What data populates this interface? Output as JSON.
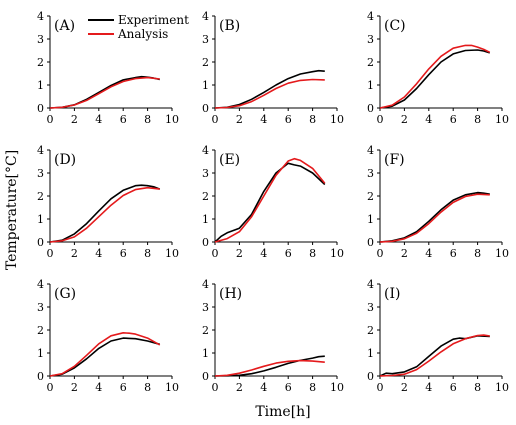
{
  "figure": {
    "xlabel": "Time[h]",
    "ylabel": "Temperature[°C]",
    "legend": {
      "placement": "inside panel A, top-right"
    }
  },
  "colors": {
    "Experiment": "#000000",
    "Analysis": "#e41a1c"
  },
  "chart_data": [
    {
      "type": "line",
      "label": "(A)",
      "xlim": [
        0,
        10
      ],
      "ylim": [
        0,
        4
      ],
      "grid": false,
      "xticks": [
        "0",
        "2",
        "4",
        "6",
        "8",
        "10"
      ],
      "yticks": [
        "0",
        "1",
        "2",
        "3",
        "4"
      ],
      "legend_entries": [
        "Experiment",
        "Analysis"
      ],
      "series": [
        {
          "name": "Experiment",
          "x": [
            0,
            1,
            2,
            3,
            4,
            5,
            6,
            7,
            7.5,
            8,
            8.5,
            9
          ],
          "y": [
            0,
            0.03,
            0.14,
            0.38,
            0.68,
            0.98,
            1.22,
            1.32,
            1.36,
            1.34,
            1.3,
            1.24
          ]
        },
        {
          "name": "Analysis",
          "x": [
            0,
            1,
            2,
            3,
            4,
            5,
            6,
            7,
            8,
            9
          ],
          "y": [
            0,
            0.03,
            0.13,
            0.33,
            0.62,
            0.92,
            1.15,
            1.28,
            1.32,
            1.26
          ]
        }
      ]
    },
    {
      "type": "line",
      "label": "(B)",
      "xlim": [
        0,
        10
      ],
      "ylim": [
        0,
        4
      ],
      "grid": false,
      "xticks": [
        "0",
        "2",
        "4",
        "6",
        "8",
        "10"
      ],
      "yticks": [
        "0",
        "1",
        "2",
        "3",
        "4"
      ],
      "series": [
        {
          "name": "Experiment",
          "x": [
            0,
            1,
            2,
            3,
            4,
            5,
            6,
            7,
            8,
            8.5,
            9
          ],
          "y": [
            0,
            0.03,
            0.15,
            0.38,
            0.68,
            1.0,
            1.28,
            1.48,
            1.58,
            1.62,
            1.6
          ]
        },
        {
          "name": "Analysis",
          "x": [
            0,
            1,
            2,
            3,
            4,
            5,
            6,
            7,
            8,
            9
          ],
          "y": [
            0,
            0.02,
            0.1,
            0.28,
            0.55,
            0.85,
            1.08,
            1.2,
            1.24,
            1.22
          ]
        }
      ]
    },
    {
      "type": "line",
      "label": "(C)",
      "xlim": [
        0,
        10
      ],
      "ylim": [
        0,
        4
      ],
      "grid": false,
      "xticks": [
        "0",
        "2",
        "4",
        "6",
        "8",
        "10"
      ],
      "yticks": [
        "0",
        "1",
        "2",
        "3",
        "4"
      ],
      "series": [
        {
          "name": "Experiment",
          "x": [
            0,
            1,
            2,
            3,
            4,
            5,
            6,
            7,
            8,
            8.5,
            9
          ],
          "y": [
            0,
            0.08,
            0.35,
            0.85,
            1.45,
            2.0,
            2.35,
            2.5,
            2.52,
            2.48,
            2.4
          ]
        },
        {
          "name": "Analysis",
          "x": [
            0,
            1,
            2,
            3,
            4,
            5,
            6,
            7,
            7.5,
            8,
            8.5,
            9
          ],
          "y": [
            0,
            0.12,
            0.48,
            1.05,
            1.7,
            2.25,
            2.6,
            2.72,
            2.72,
            2.65,
            2.55,
            2.42
          ]
        }
      ]
    },
    {
      "type": "line",
      "label": "(D)",
      "xlim": [
        0,
        10
      ],
      "ylim": [
        0,
        4
      ],
      "grid": false,
      "xticks": [
        "0",
        "2",
        "4",
        "6",
        "8",
        "10"
      ],
      "yticks": [
        "0",
        "1",
        "2",
        "3",
        "4"
      ],
      "series": [
        {
          "name": "Experiment",
          "x": [
            0,
            1,
            2,
            3,
            4,
            5,
            6,
            7,
            7.5,
            8,
            8.5,
            9
          ],
          "y": [
            0,
            0.08,
            0.35,
            0.8,
            1.35,
            1.88,
            2.25,
            2.45,
            2.47,
            2.45,
            2.4,
            2.3
          ]
        },
        {
          "name": "Analysis",
          "x": [
            0,
            1,
            2,
            3,
            4,
            5,
            6,
            7,
            8,
            9
          ],
          "y": [
            0,
            0.05,
            0.22,
            0.6,
            1.1,
            1.6,
            2.02,
            2.28,
            2.36,
            2.3
          ]
        }
      ]
    },
    {
      "type": "line",
      "label": "(E)",
      "xlim": [
        0,
        10
      ],
      "ylim": [
        0,
        4
      ],
      "grid": false,
      "xticks": [
        "0",
        "2",
        "4",
        "6",
        "8",
        "10"
      ],
      "yticks": [
        "0",
        "1",
        "2",
        "3",
        "4"
      ],
      "series": [
        {
          "name": "Experiment",
          "x": [
            0,
            0.5,
            1,
            2,
            3,
            4,
            5,
            6,
            6.5,
            7,
            8,
            9
          ],
          "y": [
            0,
            0.25,
            0.4,
            0.6,
            1.2,
            2.2,
            3.0,
            3.42,
            3.35,
            3.3,
            3.0,
            2.5
          ]
        },
        {
          "name": "Analysis",
          "x": [
            0,
            1,
            2,
            3,
            4,
            5,
            6,
            6.5,
            7,
            8,
            9
          ],
          "y": [
            0,
            0.15,
            0.45,
            1.1,
            2.0,
            2.9,
            3.52,
            3.62,
            3.55,
            3.2,
            2.55
          ]
        }
      ]
    },
    {
      "type": "line",
      "label": "(F)",
      "xlim": [
        0,
        10
      ],
      "ylim": [
        0,
        4
      ],
      "grid": false,
      "xticks": [
        "0",
        "2",
        "4",
        "6",
        "8",
        "10"
      ],
      "yticks": [
        "0",
        "1",
        "2",
        "3",
        "4"
      ],
      "series": [
        {
          "name": "Experiment",
          "x": [
            0,
            1,
            2,
            3,
            4,
            5,
            6,
            7,
            8,
            8.5,
            9
          ],
          "y": [
            0,
            0.05,
            0.18,
            0.45,
            0.9,
            1.4,
            1.82,
            2.05,
            2.15,
            2.12,
            2.08
          ]
        },
        {
          "name": "Analysis",
          "x": [
            0,
            1,
            2,
            3,
            4,
            5,
            6,
            7,
            8,
            9
          ],
          "y": [
            0,
            0.03,
            0.14,
            0.38,
            0.8,
            1.3,
            1.72,
            1.98,
            2.08,
            2.05
          ]
        }
      ]
    },
    {
      "type": "line",
      "label": "(G)",
      "xlim": [
        0,
        10
      ],
      "ylim": [
        0,
        4
      ],
      "grid": false,
      "xticks": [
        "0",
        "2",
        "4",
        "6",
        "8",
        "10"
      ],
      "yticks": [
        "0",
        "1",
        "2",
        "3",
        "4"
      ],
      "series": [
        {
          "name": "Experiment",
          "x": [
            0,
            1,
            2,
            3,
            4,
            5,
            6,
            7,
            8,
            9
          ],
          "y": [
            0,
            0.08,
            0.35,
            0.75,
            1.2,
            1.52,
            1.65,
            1.62,
            1.52,
            1.38
          ]
        },
        {
          "name": "Analysis",
          "x": [
            0,
            1,
            2,
            3,
            4,
            5,
            6,
            6.5,
            7,
            8,
            9
          ],
          "y": [
            0,
            0.1,
            0.42,
            0.9,
            1.4,
            1.75,
            1.88,
            1.86,
            1.82,
            1.65,
            1.35
          ]
        }
      ]
    },
    {
      "type": "line",
      "label": "(H)",
      "xlim": [
        0,
        10
      ],
      "ylim": [
        0,
        4
      ],
      "grid": false,
      "xticks": [
        "0",
        "2",
        "4",
        "6",
        "8",
        "10"
      ],
      "yticks": [
        "0",
        "1",
        "2",
        "3",
        "4"
      ],
      "series": [
        {
          "name": "Experiment",
          "x": [
            0,
            1,
            2,
            3,
            4,
            5,
            6,
            7,
            8,
            8.5,
            9
          ],
          "y": [
            0,
            0.01,
            0.03,
            0.1,
            0.22,
            0.38,
            0.55,
            0.68,
            0.78,
            0.84,
            0.86
          ]
        },
        {
          "name": "Analysis",
          "x": [
            0,
            1,
            2,
            3,
            4,
            5,
            6,
            7,
            8,
            9
          ],
          "y": [
            0,
            0.03,
            0.12,
            0.26,
            0.42,
            0.56,
            0.64,
            0.67,
            0.65,
            0.6
          ]
        }
      ]
    },
    {
      "type": "line",
      "label": "(I)",
      "xlim": [
        0,
        10
      ],
      "ylim": [
        0,
        4
      ],
      "grid": false,
      "xticks": [
        "0",
        "2",
        "4",
        "6",
        "8",
        "10"
      ],
      "yticks": [
        "0",
        "1",
        "2",
        "3",
        "4"
      ],
      "series": [
        {
          "name": "Experiment",
          "x": [
            0,
            0.5,
            1,
            2,
            3,
            4,
            5,
            6,
            6.5,
            7,
            8,
            9
          ],
          "y": [
            0,
            0.12,
            0.1,
            0.18,
            0.4,
            0.85,
            1.3,
            1.6,
            1.65,
            1.62,
            1.75,
            1.72
          ]
        },
        {
          "name": "Analysis",
          "x": [
            0,
            1,
            2,
            3,
            4,
            5,
            6,
            7,
            8,
            8.5,
            9
          ],
          "y": [
            0,
            0.02,
            0.08,
            0.28,
            0.65,
            1.05,
            1.4,
            1.62,
            1.76,
            1.78,
            1.74
          ]
        }
      ]
    }
  ]
}
